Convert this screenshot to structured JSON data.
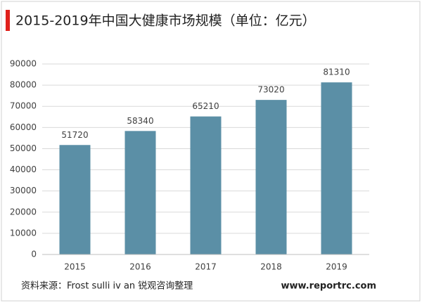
{
  "chart_data": {
    "type": "bar",
    "title": "2015-2019年中国大健康市场规模（单位：亿元）",
    "categories": [
      "2015",
      "2016",
      "2017",
      "2018",
      "2019"
    ],
    "values": [
      51720,
      58340,
      65210,
      73020,
      81310
    ],
    "color": "#5b8fa6",
    "ylim": [
      0,
      90000
    ],
    "yticks": [
      0,
      10000,
      20000,
      30000,
      40000,
      50000,
      60000,
      70000,
      80000,
      90000
    ],
    "grid": true
  },
  "source": "资料来源：Frost sulli iv an 锐观咨询整理",
  "website": "www.reportrc.com"
}
